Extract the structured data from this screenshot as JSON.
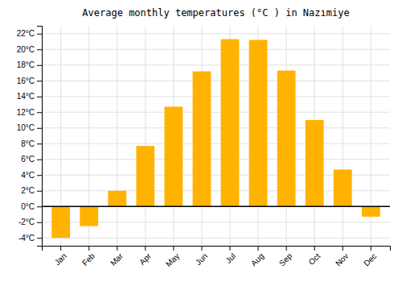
{
  "chart_data": {
    "type": "bar",
    "title": "Average monthly temperatures (°C ) in Nazımiye",
    "categories": [
      "Jan",
      "Feb",
      "Mar",
      "Apr",
      "May",
      "Jun",
      "Jul",
      "Aug",
      "Sep",
      "Oct",
      "Nov",
      "Dec"
    ],
    "values": [
      -4.0,
      -2.5,
      2.0,
      7.7,
      12.7,
      17.2,
      21.3,
      21.2,
      17.3,
      11.0,
      4.7,
      -1.3
    ],
    "color": "#FFB300",
    "ylim": [
      -5,
      23
    ],
    "yticks": [
      {
        "value": -4,
        "label": "-4°C"
      },
      {
        "value": -2,
        "label": "-2°C"
      },
      {
        "value": 0,
        "label": "0°C"
      },
      {
        "value": 2,
        "label": "2°C"
      },
      {
        "value": 4,
        "label": "4°C"
      },
      {
        "value": 6,
        "label": "6°C"
      },
      {
        "value": 8,
        "label": "8°C"
      },
      {
        "value": 10,
        "label": "10°C"
      },
      {
        "value": 12,
        "label": "12°C"
      },
      {
        "value": 14,
        "label": "14°C"
      },
      {
        "value": 16,
        "label": "16°C"
      },
      {
        "value": 18,
        "label": "18°C"
      },
      {
        "value": 20,
        "label": "20°C"
      },
      {
        "value": 22,
        "label": "22°C"
      }
    ],
    "grid": true
  }
}
